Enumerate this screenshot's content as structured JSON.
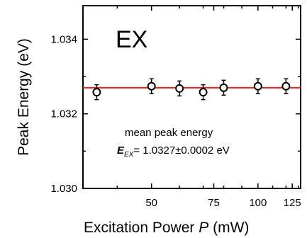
{
  "chart_data": {
    "type": "scatter",
    "panel_label": "EX",
    "x": [
      35,
      50,
      60,
      70,
      80,
      100,
      120
    ],
    "y": [
      1.03258,
      1.03274,
      1.03268,
      1.03258,
      1.0327,
      1.03274,
      1.03274
    ],
    "yerr": [
      0.0002,
      0.0002,
      0.0002,
      0.0002,
      0.0002,
      0.0002,
      0.0002
    ],
    "mean_line": 1.0327,
    "x_scale": "log",
    "xlim": [
      32,
      132
    ],
    "ylim": [
      1.03,
      1.0349
    ],
    "x_ticks": [
      "50",
      "75",
      "100",
      "125"
    ],
    "x_tick_values": [
      50,
      75,
      100,
      125
    ],
    "y_ticks": [
      "1.030",
      "1.032",
      "1.034"
    ],
    "y_tick_values": [
      1.03,
      1.032,
      1.034
    ],
    "xlabel_prefix": "Excitation Power ",
    "xlabel_var": "P",
    "xlabel_unit": " (mW)",
    "ylabel": "Peak Energy (eV)",
    "annotation_line1": "mean peak energy",
    "annotation_sym": "E",
    "annotation_sub": "EX",
    "annotation_value": "= 1.0327±0.0002 eV",
    "grid": false,
    "colors": {
      "marker": "#000000",
      "mean_line": "#e8231f",
      "axes": "#000000"
    }
  }
}
